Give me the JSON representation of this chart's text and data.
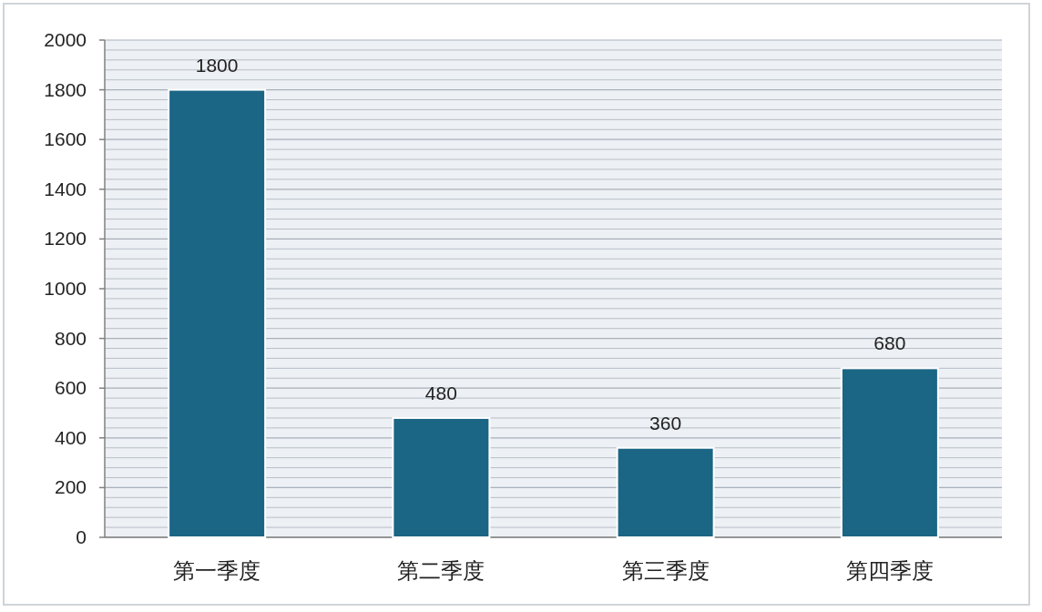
{
  "chart_data": {
    "type": "bar",
    "categories": [
      "第一季度",
      "第二季度",
      "第三季度",
      "第四季度"
    ],
    "values": [
      1800,
      480,
      360,
      680
    ],
    "color": "#1b6585",
    "ylim": [
      0,
      2000
    ],
    "yticks": [
      0,
      200,
      400,
      600,
      800,
      1000,
      1200,
      1400,
      1600,
      1800,
      2000
    ],
    "grid": "y",
    "data_labels": true
  }
}
